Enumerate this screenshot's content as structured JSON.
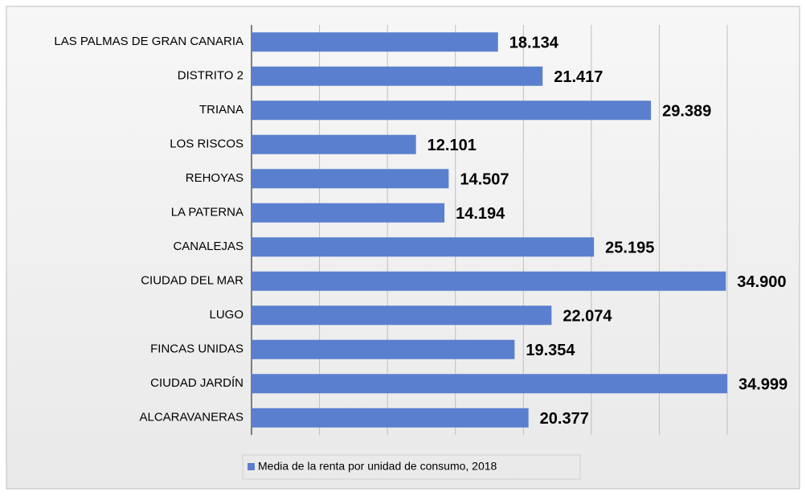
{
  "chart_data": {
    "type": "hbar",
    "categories": [
      "LAS PALMAS  DE GRAN CANARIA",
      "DISTRITO 2",
      "TRIANA",
      "LOS RISCOS",
      "REHOYAS",
      "LA PATERNA",
      "CANALEJAS",
      "CIUDAD DEL MAR",
      "LUGO",
      "FINCAS UNIDAS",
      "CIUDAD JARDÍN",
      "ALCARAVANERAS"
    ],
    "series": [
      {
        "name": "Media de la renta por unidad de consumo, 2018",
        "color": "#5b7fcf",
        "values": [
          18134,
          21417,
          29389,
          12101,
          14507,
          14194,
          25195,
          34900,
          22074,
          19354,
          34999,
          20377
        ],
        "value_labels": [
          "18.134",
          "21.417",
          "29.389",
          "12.101",
          "14.507",
          "14.194",
          "25.195",
          "34.900",
          "22.074",
          "19.354",
          "34.999",
          "20.377"
        ]
      }
    ],
    "xlim": [
      0,
      35000
    ],
    "xticks": [
      0,
      5000,
      10000,
      15000,
      20000,
      25000,
      30000,
      35000
    ],
    "grid": true,
    "legend": "bottom"
  }
}
